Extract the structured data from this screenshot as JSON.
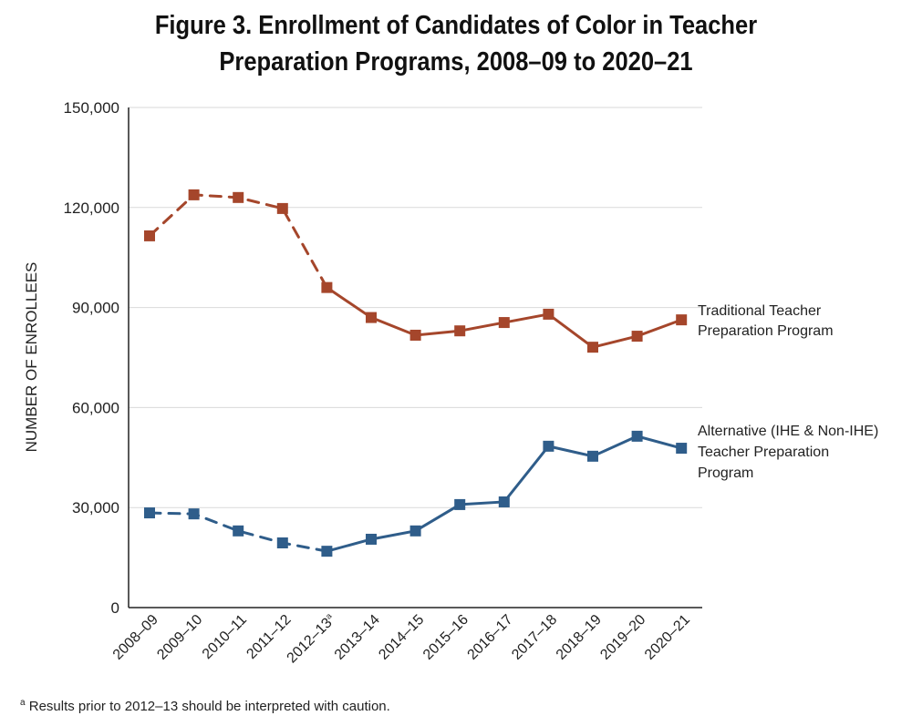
{
  "chart_data": {
    "type": "line",
    "title": "Figure 3. Enrollment of Candidates of Color in Teacher Preparation Programs, 2008–09 to 2020–21",
    "title_lines": [
      "Figure 3. Enrollment of Candidates of Color in Teacher",
      "Preparation Programs, 2008–09 to 2020–21"
    ],
    "xlabel": "",
    "ylabel": "NUMBER OF ENROLLEES",
    "ylim": [
      0,
      150000
    ],
    "yticks": [
      "0",
      "30,000",
      "60,000",
      "90,000",
      "120,000",
      "150,000"
    ],
    "ytick_values": [
      0,
      30000,
      60000,
      90000,
      120000,
      150000
    ],
    "categories": [
      "2008–09",
      "2009–10",
      "2010–11",
      "2011–12",
      "2012–13",
      "2013–14",
      "2014–15",
      "2015–16",
      "2016–17",
      "2017–18",
      "2018–19",
      "2019–20",
      "2020–21"
    ],
    "category_superscripts": {
      "2012–13": "a"
    },
    "grid": "horizontal",
    "dashed_through": "2012–13",
    "series": [
      {
        "name": "Traditional Teacher Preparation Program",
        "label_lines": [
          "Traditional Teacher",
          "Preparation Program"
        ],
        "color": "#a5462b",
        "values": [
          111500,
          123800,
          123000,
          119700,
          96000,
          87000,
          81700,
          83000,
          85500,
          88000,
          78100,
          81400,
          86300
        ]
      },
      {
        "name": "Alternative (IHE & Non-IHE) Teacher Preparation Program",
        "label_lines": [
          "Alternative (IHE & Non-IHE)",
          "Teacher Preparation",
          "Program"
        ],
        "color": "#2f5d8a",
        "values": [
          28400,
          28100,
          23000,
          19400,
          16900,
          20500,
          23000,
          30900,
          31700,
          48400,
          45400,
          51400,
          47800
        ]
      }
    ],
    "footnote_marker": "a",
    "footnote": "Results prior to 2012–13 should be interpreted with caution."
  }
}
